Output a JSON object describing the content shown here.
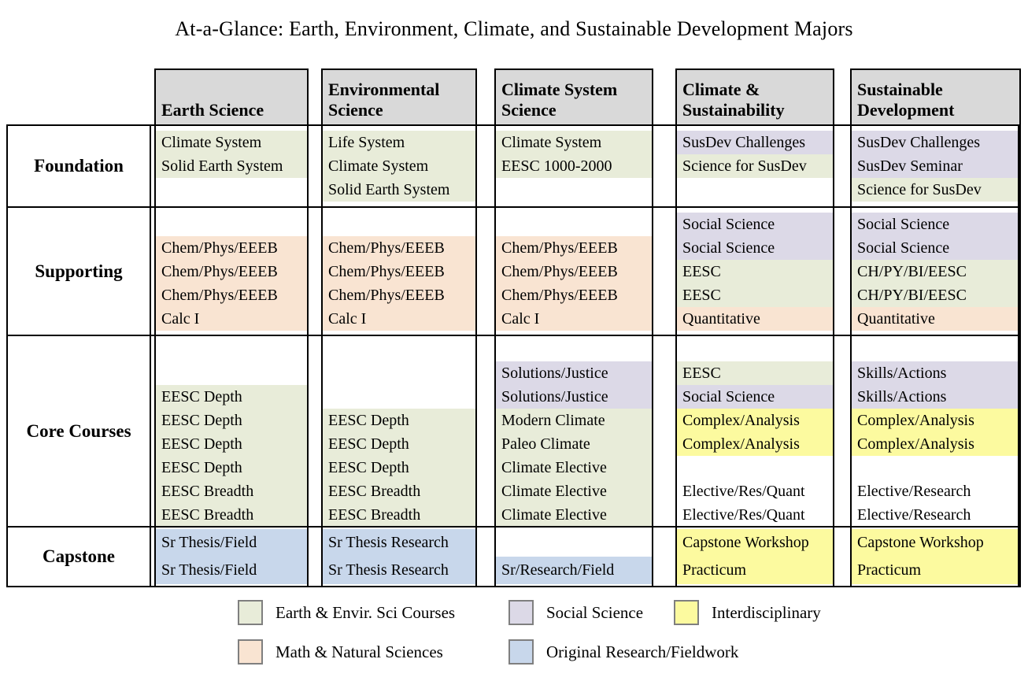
{
  "title": "At-a-Glance: Earth, Environment, Climate, and Sustainable Development Majors",
  "colors": {
    "header_bg": "#d9d9d9",
    "earth_env_sci": "#e8ecd9",
    "social_science": "#dcd9e7",
    "math_nat_sci": "#f9e4d2",
    "interdisciplinary": "#fcfa9f",
    "original_research": "#c8d7eb",
    "swatch_border": "#7f7f7f"
  },
  "columns": [
    {
      "label": "Earth Science"
    },
    {
      "label": "Environmental Science"
    },
    {
      "label": "Climate System Science"
    },
    {
      "label": "Climate & Sustainability"
    },
    {
      "label": "Sustainable Development"
    }
  ],
  "rows": [
    {
      "label": "Foundation",
      "cells": [
        {
          "lines": [
            {
              "text": "Climate System",
              "color": "earth_env_sci"
            },
            {
              "text": "Solid Earth System",
              "color": "earth_env_sci"
            }
          ]
        },
        {
          "lines": [
            {
              "text": "Life System",
              "color": "earth_env_sci"
            },
            {
              "text": "Climate System",
              "color": "earth_env_sci"
            },
            {
              "text": "Solid Earth System",
              "color": "earth_env_sci"
            }
          ]
        },
        {
          "lines": [
            {
              "text": "Climate System",
              "color": "earth_env_sci"
            },
            {
              "text": "EESC 1000-2000",
              "color": "earth_env_sci"
            }
          ]
        },
        {
          "lines": [
            {
              "text": "SusDev Challenges",
              "color": "social_science"
            },
            {
              "text": "Science for SusDev",
              "color": "earth_env_sci"
            }
          ]
        },
        {
          "lines": [
            {
              "text": "SusDev Challenges",
              "color": "social_science"
            },
            {
              "text": "SusDev Seminar",
              "color": "social_science"
            },
            {
              "text": "Science for SusDev",
              "color": "earth_env_sci"
            }
          ]
        }
      ]
    },
    {
      "label": "Supporting",
      "cells": [
        {
          "lines": [
            {
              "text": "",
              "color": null
            },
            {
              "text": "Chem/Phys/EEEB",
              "color": "math_nat_sci"
            },
            {
              "text": "Chem/Phys/EEEB",
              "color": "math_nat_sci"
            },
            {
              "text": "Chem/Phys/EEEB",
              "color": "math_nat_sci"
            },
            {
              "text": "Calc I",
              "color": "math_nat_sci"
            }
          ]
        },
        {
          "lines": [
            {
              "text": "",
              "color": null
            },
            {
              "text": "Chem/Phys/EEEB",
              "color": "math_nat_sci"
            },
            {
              "text": "Chem/Phys/EEEB",
              "color": "math_nat_sci"
            },
            {
              "text": "Chem/Phys/EEEB",
              "color": "math_nat_sci"
            },
            {
              "text": "Calc I",
              "color": "math_nat_sci"
            }
          ]
        },
        {
          "lines": [
            {
              "text": "",
              "color": null
            },
            {
              "text": "Chem/Phys/EEEB",
              "color": "math_nat_sci"
            },
            {
              "text": "Chem/Phys/EEEB",
              "color": "math_nat_sci"
            },
            {
              "text": "Chem/Phys/EEEB",
              "color": "math_nat_sci"
            },
            {
              "text": "Calc I",
              "color": "math_nat_sci"
            }
          ]
        },
        {
          "lines": [
            {
              "text": "Social Science",
              "color": "social_science"
            },
            {
              "text": "Social Science",
              "color": "social_science"
            },
            {
              "text": "EESC",
              "color": "earth_env_sci"
            },
            {
              "text": "EESC",
              "color": "earth_env_sci"
            },
            {
              "text": "Quantitative",
              "color": "math_nat_sci"
            }
          ]
        },
        {
          "lines": [
            {
              "text": "Social Science",
              "color": "social_science"
            },
            {
              "text": "Social Science",
              "color": "social_science"
            },
            {
              "text": "CH/PY/BI/EESC",
              "color": "earth_env_sci"
            },
            {
              "text": "CH/PY/BI/EESC",
              "color": "earth_env_sci"
            },
            {
              "text": "Quantitative",
              "color": "math_nat_sci"
            }
          ]
        }
      ]
    },
    {
      "label": "Core Courses",
      "cells": [
        {
          "lines": [
            {
              "text": "",
              "color": null
            },
            {
              "text": "",
              "color": null
            },
            {
              "text": "EESC Depth",
              "color": "earth_env_sci"
            },
            {
              "text": "EESC Depth",
              "color": "earth_env_sci"
            },
            {
              "text": "EESC Depth",
              "color": "earth_env_sci"
            },
            {
              "text": "EESC Depth",
              "color": "earth_env_sci"
            },
            {
              "text": "EESC Breadth",
              "color": "earth_env_sci"
            },
            {
              "text": "EESC Breadth",
              "color": "earth_env_sci"
            }
          ]
        },
        {
          "lines": [
            {
              "text": "",
              "color": null
            },
            {
              "text": "",
              "color": null
            },
            {
              "text": "",
              "color": null
            },
            {
              "text": "EESC Depth",
              "color": "earth_env_sci"
            },
            {
              "text": "EESC Depth",
              "color": "earth_env_sci"
            },
            {
              "text": "EESC Depth",
              "color": "earth_env_sci"
            },
            {
              "text": "EESC Breadth",
              "color": "earth_env_sci"
            },
            {
              "text": "EESC Breadth",
              "color": "earth_env_sci"
            }
          ]
        },
        {
          "lines": [
            {
              "text": "",
              "color": null
            },
            {
              "text": "Solutions/Justice",
              "color": "social_science"
            },
            {
              "text": "Solutions/Justice",
              "color": "social_science"
            },
            {
              "text": "Modern Climate",
              "color": "earth_env_sci"
            },
            {
              "text": "Paleo Climate",
              "color": "earth_env_sci"
            },
            {
              "text": "Climate Elective",
              "color": "earth_env_sci"
            },
            {
              "text": "Climate Elective",
              "color": "earth_env_sci"
            },
            {
              "text": "Climate Elective",
              "color": "earth_env_sci"
            }
          ]
        },
        {
          "lines": [
            {
              "text": "",
              "color": null
            },
            {
              "text": "EESC",
              "color": "earth_env_sci"
            },
            {
              "text": "Social Science",
              "color": "social_science"
            },
            {
              "text": "Complex/Analysis",
              "color": "interdisciplinary"
            },
            {
              "text": "Complex/Analysis",
              "color": "interdisciplinary"
            },
            {
              "text": "",
              "color": null
            },
            {
              "text": "Elective/Res/Quant",
              "color": null
            },
            {
              "text": "Elective/Res/Quant",
              "color": null
            }
          ]
        },
        {
          "lines": [
            {
              "text": "",
              "color": null
            },
            {
              "text": "Skills/Actions",
              "color": "social_science"
            },
            {
              "text": "Skills/Actions",
              "color": "social_science"
            },
            {
              "text": "Complex/Analysis",
              "color": "interdisciplinary"
            },
            {
              "text": "Complex/Analysis",
              "color": "interdisciplinary"
            },
            {
              "text": "",
              "color": null
            },
            {
              "text": "Elective/Research",
              "color": null
            },
            {
              "text": "Elective/Research",
              "color": null
            }
          ]
        }
      ]
    },
    {
      "label": "Capstone",
      "cells": [
        {
          "lines": [
            {
              "text": "Sr Thesis/Field",
              "color": "original_research"
            },
            {
              "text": "Sr Thesis/Field",
              "color": "original_research"
            }
          ]
        },
        {
          "lines": [
            {
              "text": "Sr Thesis Research",
              "color": "original_research"
            },
            {
              "text": "Sr Thesis Research",
              "color": "original_research"
            }
          ]
        },
        {
          "lines": [
            {
              "text": "",
              "color": null
            },
            {
              "text": "Sr/Research/Field",
              "color": "original_research"
            }
          ]
        },
        {
          "lines": [
            {
              "text": "Capstone Workshop",
              "color": "interdisciplinary"
            },
            {
              "text": "Practicum",
              "color": "interdisciplinary"
            }
          ]
        },
        {
          "lines": [
            {
              "text": "Capstone Workshop",
              "color": "interdisciplinary"
            },
            {
              "text": "Practicum",
              "color": "interdisciplinary"
            }
          ]
        }
      ]
    }
  ],
  "legend": {
    "items": [
      {
        "label": "Earth & Envir. Sci Courses",
        "color": "earth_env_sci"
      },
      {
        "label": "Social Science",
        "color": "social_science"
      },
      {
        "label": "Interdisciplinary",
        "color": "interdisciplinary"
      },
      {
        "label": "Math & Natural Sciences",
        "color": "math_nat_sci"
      },
      {
        "label": "Original Research/Fieldwork",
        "color": "original_research"
      }
    ]
  }
}
